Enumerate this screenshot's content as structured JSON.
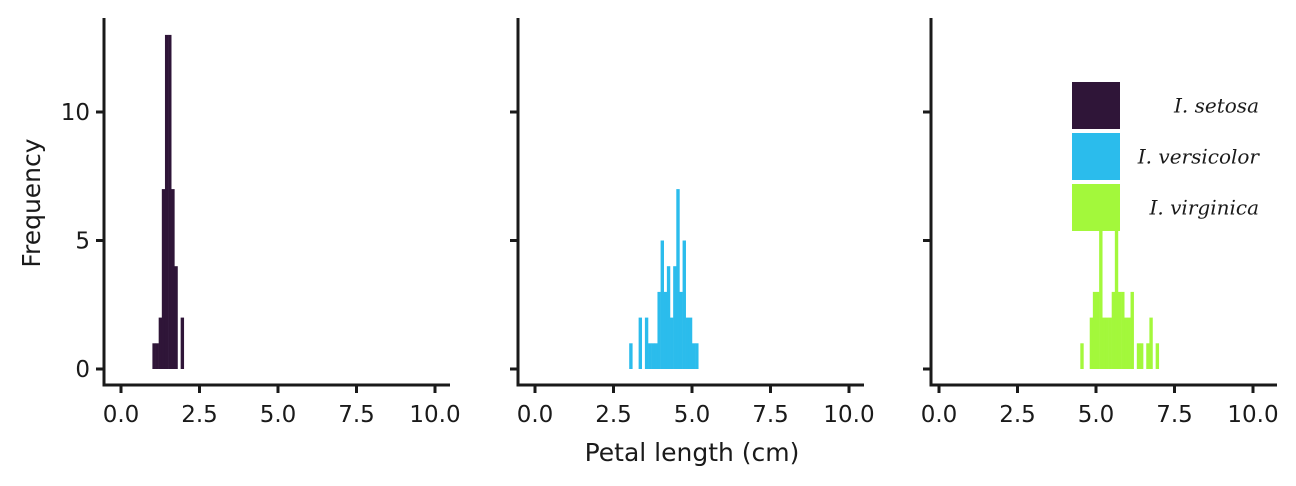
{
  "chart_data": {
    "type": "bar",
    "subtype": "faceted-histogram",
    "xlabel": "Petal length (cm)",
    "ylabel": "Frequency",
    "xlim": [
      0,
      10
    ],
    "ylim": [
      0,
      13
    ],
    "x_ticks": [
      "0.0",
      "2.5",
      "5.0",
      "7.5",
      "10.0"
    ],
    "y_ticks": [
      "0",
      "5",
      "10"
    ],
    "bin_width": 0.1,
    "legend_position": "top-right of third panel",
    "grid": false,
    "series": [
      {
        "name": "I. setosa",
        "color": "#2f1538",
        "bins": [
          {
            "x": 1.0,
            "count": 1
          },
          {
            "x": 1.1,
            "count": 1
          },
          {
            "x": 1.2,
            "count": 2
          },
          {
            "x": 1.3,
            "count": 7
          },
          {
            "x": 1.4,
            "count": 13
          },
          {
            "x": 1.5,
            "count": 13
          },
          {
            "x": 1.6,
            "count": 7
          },
          {
            "x": 1.7,
            "count": 4
          },
          {
            "x": 1.9,
            "count": 2
          }
        ]
      },
      {
        "name": "I. versicolor",
        "color": "#2bbcec",
        "bins": [
          {
            "x": 3.0,
            "count": 1
          },
          {
            "x": 3.3,
            "count": 2
          },
          {
            "x": 3.5,
            "count": 2
          },
          {
            "x": 3.6,
            "count": 1
          },
          {
            "x": 3.7,
            "count": 1
          },
          {
            "x": 3.8,
            "count": 1
          },
          {
            "x": 3.9,
            "count": 3
          },
          {
            "x": 4.0,
            "count": 5
          },
          {
            "x": 4.1,
            "count": 3
          },
          {
            "x": 4.2,
            "count": 4
          },
          {
            "x": 4.3,
            "count": 2
          },
          {
            "x": 4.4,
            "count": 4
          },
          {
            "x": 4.5,
            "count": 7
          },
          {
            "x": 4.6,
            "count": 3
          },
          {
            "x": 4.7,
            "count": 5
          },
          {
            "x": 4.8,
            "count": 2
          },
          {
            "x": 4.9,
            "count": 2
          },
          {
            "x": 5.0,
            "count": 1
          },
          {
            "x": 5.1,
            "count": 1
          }
        ]
      },
      {
        "name": "I. virginica",
        "color": "#a3f83b",
        "bins": [
          {
            "x": 4.5,
            "count": 1
          },
          {
            "x": 4.8,
            "count": 2
          },
          {
            "x": 4.9,
            "count": 3
          },
          {
            "x": 5.0,
            "count": 3
          },
          {
            "x": 5.1,
            "count": 7
          },
          {
            "x": 5.2,
            "count": 2
          },
          {
            "x": 5.3,
            "count": 2
          },
          {
            "x": 5.4,
            "count": 2
          },
          {
            "x": 5.5,
            "count": 3
          },
          {
            "x": 5.6,
            "count": 6
          },
          {
            "x": 5.7,
            "count": 3
          },
          {
            "x": 5.8,
            "count": 3
          },
          {
            "x": 5.9,
            "count": 2
          },
          {
            "x": 6.0,
            "count": 2
          },
          {
            "x": 6.1,
            "count": 3
          },
          {
            "x": 6.3,
            "count": 1
          },
          {
            "x": 6.4,
            "count": 1
          },
          {
            "x": 6.6,
            "count": 1
          },
          {
            "x": 6.7,
            "count": 2
          },
          {
            "x": 6.9,
            "count": 1
          }
        ]
      }
    ]
  }
}
